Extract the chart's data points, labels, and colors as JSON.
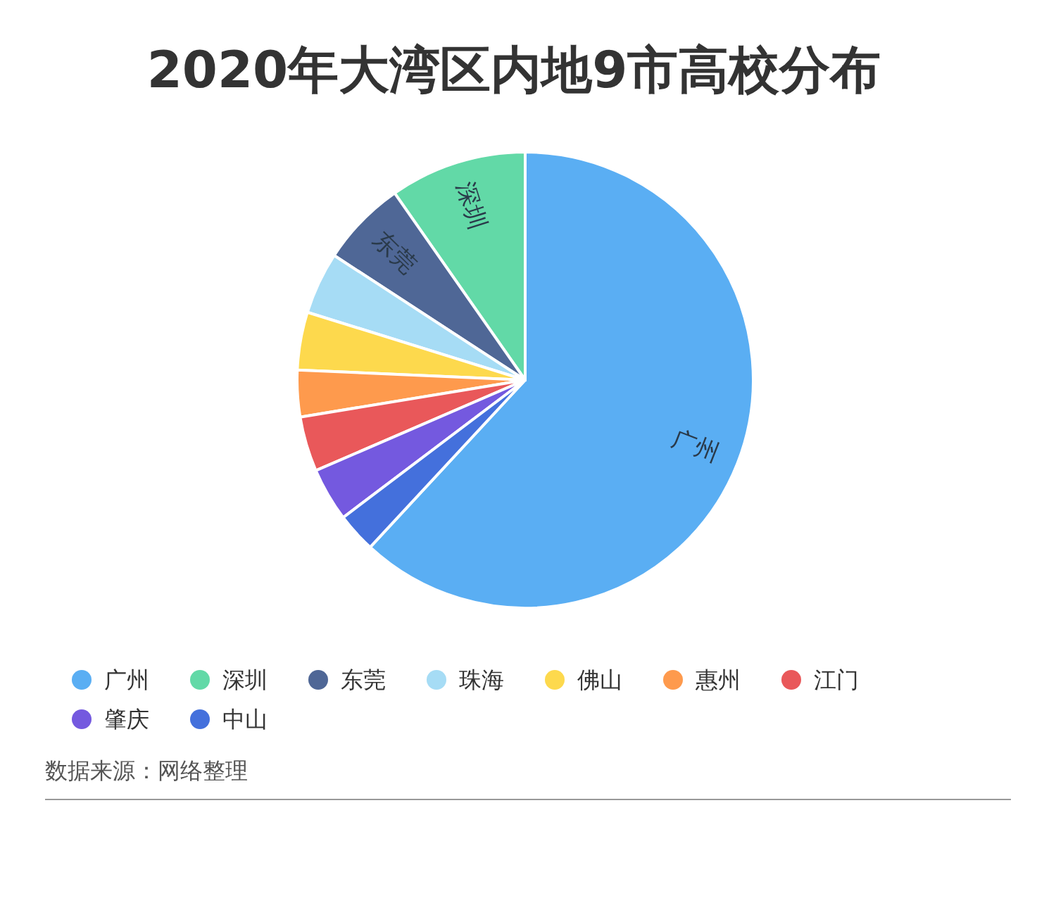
{
  "chart_data": {
    "type": "pie",
    "title": "2020年大湾区内地9市高校分布",
    "categories": [
      "广州",
      "深圳",
      "东莞",
      "珠海",
      "佛山",
      "惠州",
      "江门",
      "肇庆",
      "中山"
    ],
    "values": [
      61.9,
      9.7,
      6.1,
      4.4,
      4.1,
      3.3,
      3.9,
      3.8,
      2.8
    ],
    "colors": [
      "#5aaef3",
      "#62d9a7",
      "#4f6796",
      "#a6dcf5",
      "#fdd94d",
      "#fe9a4d",
      "#e9585a",
      "#7459df",
      "#4470dc"
    ],
    "legend": "bottom",
    "annotations": [
      "数据来源：网络整理"
    ]
  }
}
